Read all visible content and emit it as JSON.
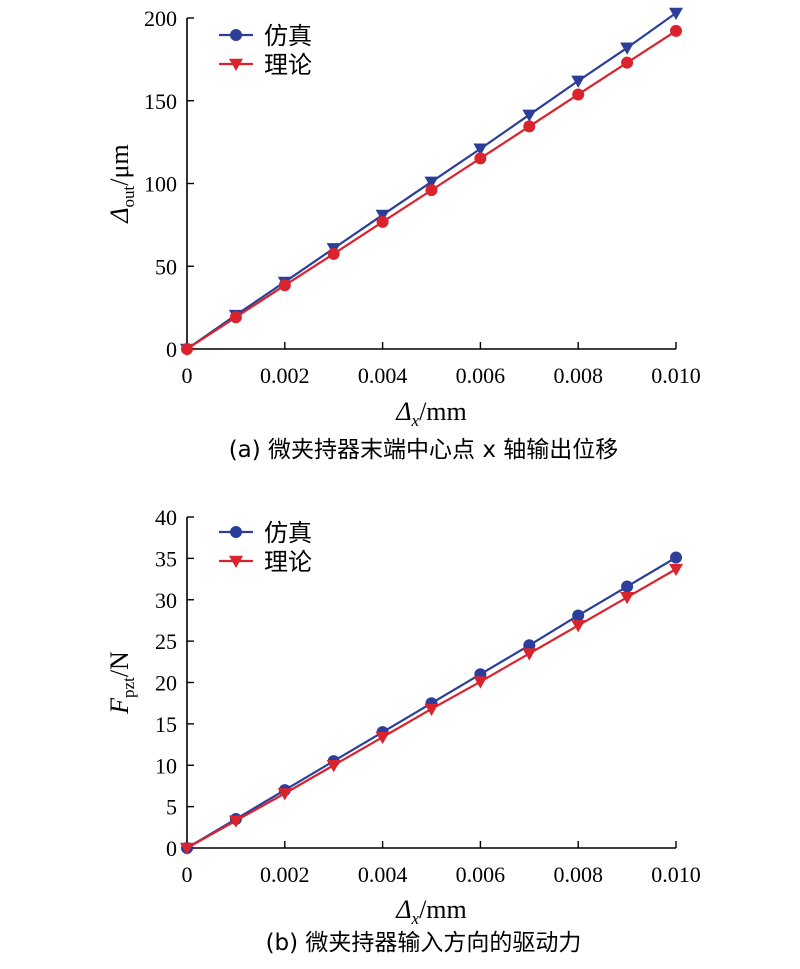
{
  "legend_marker_names": [
    "circle",
    "triangle-down"
  ],
  "chart_data": [
    {
      "type": "line",
      "x": [
        0,
        0.001,
        0.002,
        0.003,
        0.004,
        0.005,
        0.006,
        0.007,
        0.008,
        0.009,
        0.01
      ],
      "x_tick_labels": [
        "0",
        "0.002",
        "0.004",
        "0.006",
        "0.008",
        "0.010"
      ],
      "x_ticks": [
        0,
        0.002,
        0.004,
        0.006,
        0.008,
        0.01
      ],
      "xlim": [
        0,
        0.01
      ],
      "ylim": [
        0,
        200
      ],
      "y_ticks": [
        0,
        50,
        100,
        150,
        200
      ],
      "y_tick_labels": [
        "0",
        "50",
        "100",
        "150",
        "200"
      ],
      "xlabel_main": "Δ",
      "xlabel_sub": "x",
      "xlabel_unit": "/mm",
      "ylabel_main": "Δ",
      "ylabel_sub": "out",
      "ylabel_unit": "/μm",
      "caption": "(a) 微夹持器末端中心点 x 轴输出位移",
      "grid": false,
      "legend_position": "top-left",
      "series": [
        {
          "name": "仿真",
          "color": "#2b3f9a",
          "marker": "triangle-down",
          "values": [
            0,
            20.5,
            40.5,
            60.8,
            81.0,
            101.0,
            121.0,
            141.5,
            162.0,
            182.0,
            203.0
          ]
        },
        {
          "name": "理论",
          "color": "#d9232d",
          "marker": "circle",
          "values": [
            0,
            19.2,
            38.5,
            57.5,
            76.8,
            96.0,
            115.2,
            134.5,
            153.8,
            173.0,
            192.2
          ]
        }
      ]
    },
    {
      "type": "line",
      "x": [
        0,
        0.001,
        0.002,
        0.003,
        0.004,
        0.005,
        0.006,
        0.007,
        0.008,
        0.009,
        0.01
      ],
      "x_tick_labels": [
        "0",
        "0.002",
        "0.004",
        "0.006",
        "0.008",
        "0.010"
      ],
      "x_ticks": [
        0,
        0.002,
        0.004,
        0.006,
        0.008,
        0.01
      ],
      "xlim": [
        0,
        0.01
      ],
      "ylim": [
        0,
        40
      ],
      "y_ticks": [
        0,
        5,
        10,
        15,
        20,
        25,
        30,
        35,
        40
      ],
      "y_tick_labels": [
        "0",
        "5",
        "10",
        "15",
        "20",
        "25",
        "30",
        "35",
        "40"
      ],
      "xlabel_main": "Δ",
      "xlabel_sub": "x",
      "xlabel_unit": "/mm",
      "ylabel_main": "F",
      "ylabel_sub": "pzt",
      "ylabel_unit": "/N",
      "caption": "(b) 微夹持器输入方向的驱动力",
      "grid": false,
      "legend_position": "top-left",
      "series": [
        {
          "name": "仿真",
          "color": "#2b3f9a",
          "marker": "circle",
          "values": [
            0,
            3.5,
            7.0,
            10.5,
            14.0,
            17.5,
            21.0,
            24.5,
            28.1,
            31.6,
            35.1
          ]
        },
        {
          "name": "理论",
          "color": "#d9232d",
          "marker": "triangle-down",
          "values": [
            0,
            3.3,
            6.6,
            10.0,
            13.4,
            16.8,
            20.1,
            23.5,
            26.9,
            30.3,
            33.7
          ]
        }
      ]
    }
  ]
}
